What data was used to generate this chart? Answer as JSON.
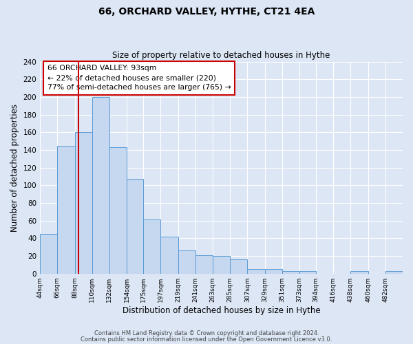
{
  "title1": "66, ORCHARD VALLEY, HYTHE, CT21 4EA",
  "title2": "Size of property relative to detached houses in Hythe",
  "xlabel": "Distribution of detached houses by size in Hythe",
  "ylabel": "Number of detached properties",
  "bin_edges": [
    44,
    66,
    88,
    110,
    132,
    154,
    175,
    197,
    219,
    241,
    263,
    285,
    307,
    329,
    351,
    373,
    394,
    416,
    438,
    460,
    482,
    504
  ],
  "bin_labels": [
    "44sqm",
    "66sqm",
    "88sqm",
    "110sqm",
    "132sqm",
    "154sqm",
    "175sqm",
    "197sqm",
    "219sqm",
    "241sqm",
    "263sqm",
    "285sqm",
    "307sqm",
    "329sqm",
    "351sqm",
    "373sqm",
    "394sqm",
    "416sqm",
    "438sqm",
    "460sqm",
    "482sqm"
  ],
  "bar_heights": [
    45,
    145,
    160,
    200,
    143,
    107,
    61,
    42,
    26,
    21,
    20,
    16,
    5,
    5,
    3,
    3,
    0,
    0,
    3,
    0,
    3
  ],
  "bar_color": "#c5d8f0",
  "bar_edge_color": "#5b9bd5",
  "property_size": 93,
  "vline_color": "#cc0000",
  "annotation_text": "66 ORCHARD VALLEY: 93sqm\n← 22% of detached houses are smaller (220)\n77% of semi-detached houses are larger (765) →",
  "annotation_box_color": "#ffffff",
  "annotation_box_edge_color": "#cc0000",
  "ylim": [
    0,
    240
  ],
  "yticks": [
    0,
    20,
    40,
    60,
    80,
    100,
    120,
    140,
    160,
    180,
    200,
    220,
    240
  ],
  "plot_bg_color": "#dce6f5",
  "fig_bg_color": "#dce6f5",
  "grid_color": "#ffffff",
  "footer1": "Contains HM Land Registry data © Crown copyright and database right 2024.",
  "footer2": "Contains public sector information licensed under the Open Government Licence v3.0."
}
